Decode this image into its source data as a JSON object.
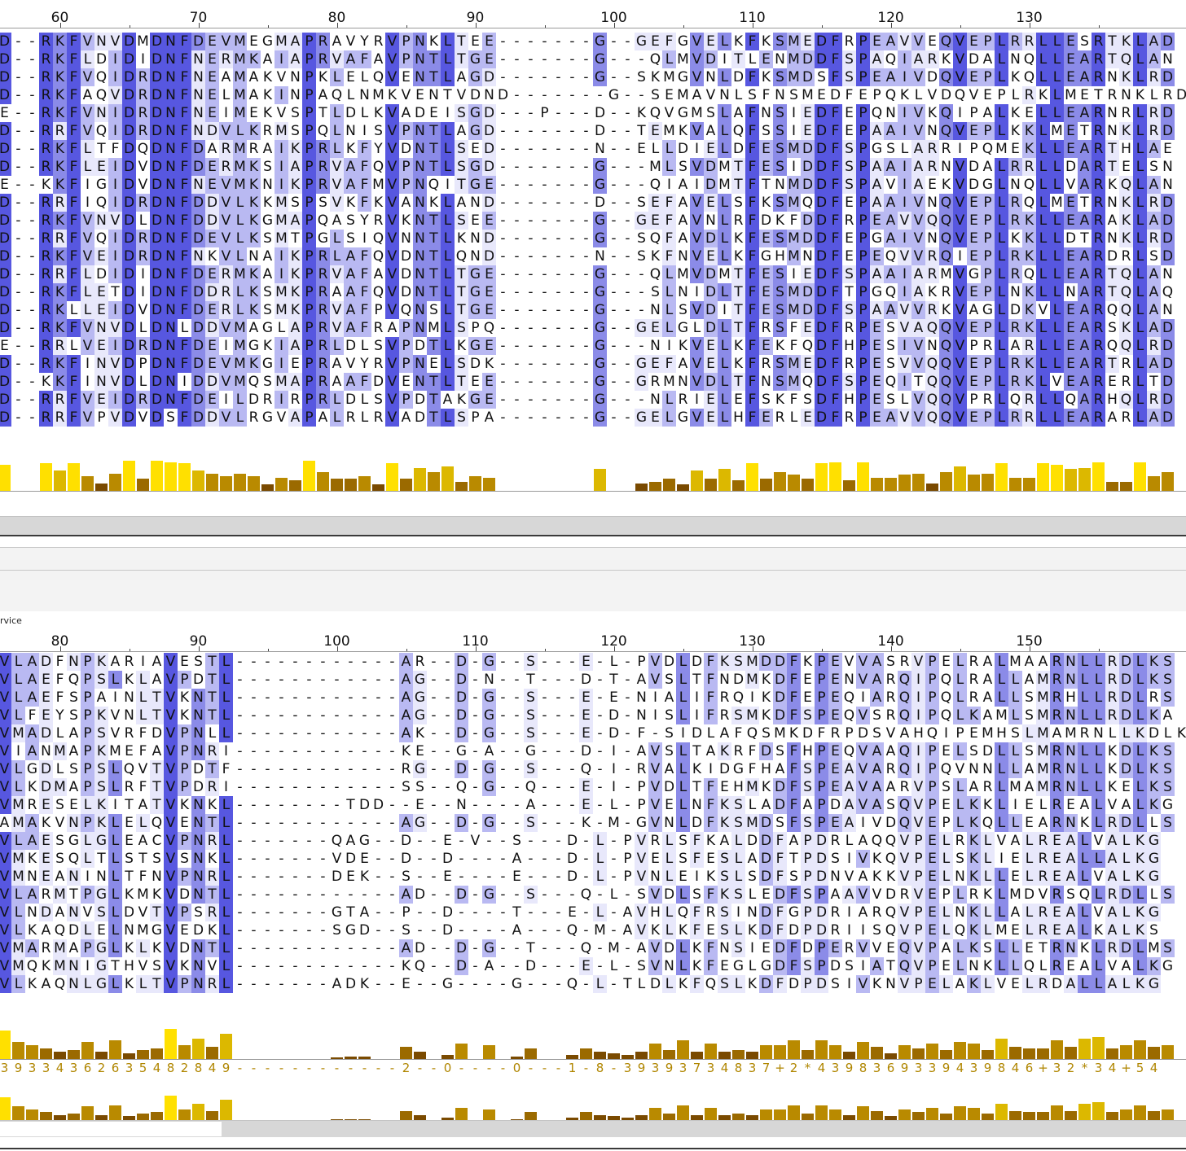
{
  "top_panel": {
    "ruler_start": 56,
    "ruler_labels": [
      "60",
      "70",
      "80",
      "90",
      "100",
      "110",
      "120",
      "130"
    ],
    "rows": [
      "D--RKFVNVDMDNFDEVMEGMAPRAVYRVPNKLTEE-------G--GEFGVELKFKSMEDFRPEAVVEQVEPLRRLLESRTKLAD",
      "D--RKFLDIDIDNFNERMKAIAPRVAFAVPNTLTGE-------G---QLMVDITLENMDDFSPAQIARKVDALNQLLEARTQLAN",
      "D--RKFVQIDRDNFNEAMAKVNPKLELQVENTLAGD-------G--SKMGVNLDFKSMDSFSPEAIVDQVEPLKQLLEARNKLRD",
      "D--RKFAQVDRDNFNELMAKINPAQLNMKVENTVDND-------G--SEMAVNLSFNSMEDFEPQKLVDQVEPLRKLMETRNKLRD",
      "E--RKFVNIDRDNFNEIMEKVSPTLDLKVADEISGD---P---D--KQVGMSLAFNSIEDFEPQNIVKQIPALKELLEARNRLRD",
      "D--RRFVQIDRDNFNDVLKRMSPQLNISVPNTLAGD-------D--TEMKVALQFSSIEDFEPAAIVNQVEPLKKLMETRNKLRD",
      "D--RKFLTFDQDNFDARMRAIKPRLKFYVDNTLSED-------N--ELLDIELDFESMDDFSPGSLARRIPQMEKLLEARTHLAE",
      "D--RKFLEIDVDNFDERMKSIAPRVAFQVPNTLSGD-------G---MLSVDMTFESIDDFSPAAIARNVDALRRLLDARTELSN",
      "E--KKFIGIDVDNFNEVMKNIKPRVAFMVPNQITGE-------G---QIAIDMTFTNMDDFSPAVIAEKVDGLNQLLVARKQLAN",
      "D--RRFIQIDRDNFDDVLKKMSPSVKFKVANKLAND-------D--SEFAVELSFKSMQDFEPAAIVNQVEPLRQLMETRNKLRD",
      "D--RKFVNVDLDNFDDVLKGMAPQASYRVKNTLSEE-------G--GEFAVNLRFDKFDDFRPEAVVQQVEPLRKLLEARAKLAD",
      "D--RRFVQIDRDNFDEVLKSMTPGLSIQVNNTLKND-------G--SQFAVDLKFESMDDFEPGAIVNQVEPLKKLLDTRNKLRD",
      "D--RKFVEIDRDNFNKVLNAIKPRLAFQVDNTLQND-------N--SKFNVELKFGHMNDFEPEQVVRQIEPLRKLLEARDRLSD",
      "D--RRFLDIDIDNFDERMKAIKPRVAFAVDNTLTGE-------G---QLMVDMTFESIEDFSPAAIARMVGPLRQLLEARTQLAN",
      "D--RKFLETDIDNFDDRLKSMKPRAAFQVDNTLTGE-------G---SLNIDLTFESMDDFTPGQIAKRVEPLNKLLNARTQLAQ",
      "D--RKLLEIDVDNFDERLKSMKPRVAFPVQNSLTGE-------G---NLSVDITFESMDDFSPAAVVRKVAGLDKVLEARQQLAN",
      "D--RKFVNVDLDNLDDVMAGLAPRVAFRAPNMLSPQ-------G--GELGLDLTFRSFEDFRPESVAQQVEPLRKLLEARSKLAD",
      "E--RRLVEIDRDNFDEIMGKIAPRLDLSVPDTLKGE-------G---NIKVELKFEKFQDFHPESIVNQVPRLARLLEARQQLRD",
      "D--RKFINVDPDNFDEVMKGIEPRAVYRVPNELSDK-------G--GEFAVELKFRSMEDFRPESVVQQVEPLRKLLEARTRLAD",
      "D--KKFINVDLDNIDDVMQSMAPRAAFDVENTLTEE-------G--GRMNVDLTFNSMQDFSPEQITQQVEPLRKLVEARERLTD",
      "D--RRFVEIDRDNFDEILDRIRPRLDLSVPDTAKGE-------G---NLRIELEFSKFSDFHPESLVQQVPRLQRLLQARHQLRD",
      "D--RRFVPVDVDSFDDVLRGVAPALRLRVADTLSPA-------G--GELGVELHFERLEDFRPEAVVQQVEPLRRLLEARARLAD"
    ]
  },
  "bottom_panel": {
    "label": "rvice",
    "ruler_start": 76,
    "ruler_labels": [
      "80",
      "90",
      "100",
      "110",
      "120",
      "130",
      "140",
      "150"
    ],
    "rows": [
      "VLADFNPKARIAVESTL------------AR--D-G--S---E-L-PVDLDFKSMDDFKPEVVASRVPELRALMAARNLLRDLKS",
      "VLAEFQPSLKLAVPDTL------------AG--D-N--T---D-T-AVSLTFNDMKDFEPENVARQIPQLRALLAMRNLLRDLKS",
      "VLAEFSPAINLTVKNTL------------AG--D-G--S---E-E-NIALIFRQIKDFEPEQIARQIPQLRALLSMRHLLRDLRS",
      "VLFEYSPKVNLTVKNTL------------AG--D-G--S---E-D-NISLIFRSMKDFSPEQVSRQIPQLKAMLSMRNLLRDLKA",
      "VMADLAPSVRFDVPNLL------------AK--D-G--S---E-D-F-SIDLAFQSMKDFRPDSVAHQIPEMHSLMAMRNLLKDLKS",
      "VIANMAPKMEFAVPNRI------------KE--G-A--G---D-I-AVSLTAKRFDSFHPEQVAAQIPELSDLLSMRNLLKDLKS",
      "VLGDLSPSLQVTVPDTF------------RG--D-G--S---Q-I-RVALKIDGFHAFSPEAVARQIPQVNNLLAMRNLLKDLKS",
      "VLKDMAPSLRFTVPDRI------------SS--Q-G--Q---E-I-PVDLTFEHMKDFSPEAVAARVPSLARLMAMRNLLKELKS",
      "VMRESELKITATVKNKL--------TDD--E--N----A---E-L-PVELNFKSLADFAPDAVASQVPELKKLIELREALVALKG",
      "AMAKVNPKLELQVENTL------------AG--D-G--S---K-M-GVNLDFKSMDSFSPEAIVDQVEPLKQLLEARNKLRDLLS",
      "VLAESGLGLEACVPNRL-------QAG--D--E-V--S---D-L-PVRLSFKALDDFAPDRLAQQVPELRKLVALREALVALKG",
      "VMKESQLTLSTSVSNKL-------VDE--D--D----A---D-L-PVELSFESLADFTPDSIVKQVPELSKLIELREALLALKG",
      "VMNEANINLTFNVPNRL-------DEK--S--E----E---D-L-PVNLEIKSLSDFSPDNVAKKVPELNKLLELREALVALKG",
      "VLARMTPGLKMKVDNTL------------AD--D-G--S---Q-L-SVDLSFKSLEDFSPAAVVDRVEPLRKLMDVRSQLRDLLS",
      "VLNDANVSLDVTVPSRL-------GTA--P--D----T---E-L-AVHLQFRSINDFGPDRIARQVPELNKLLALREALVALKG",
      "VLKAQDLELNMGVEDKL-------SGD--S--D----A---Q-M-AVKLKFESLKDFDPDRIISQVPELQKLMELREALKALKS",
      "VMARMAPGLKLKVDNTL------------AD--D-G--T---Q-M-AVDLKFNSIEDFDPERVVEQVPALKSLLETRNKLRDLMS",
      "VMQKMNIGTHVSVKNVL------------KQ--D-A--D---E-L-SVNLKFEGLGDFSPDSIATQVPELNKLLQLREALVALKG",
      "VLKAQNLGLKLTVPNRL-------ADK--E--G----G---Q-L-TLDLKFQSLKDFDPDSIVKNVPELAKLVELRDALLALKG"
    ],
    "consensus": "393343626354828​49------------2--0----0---1-8-39393734837+2*439836933943984 6+32*34+54"
  }
}
